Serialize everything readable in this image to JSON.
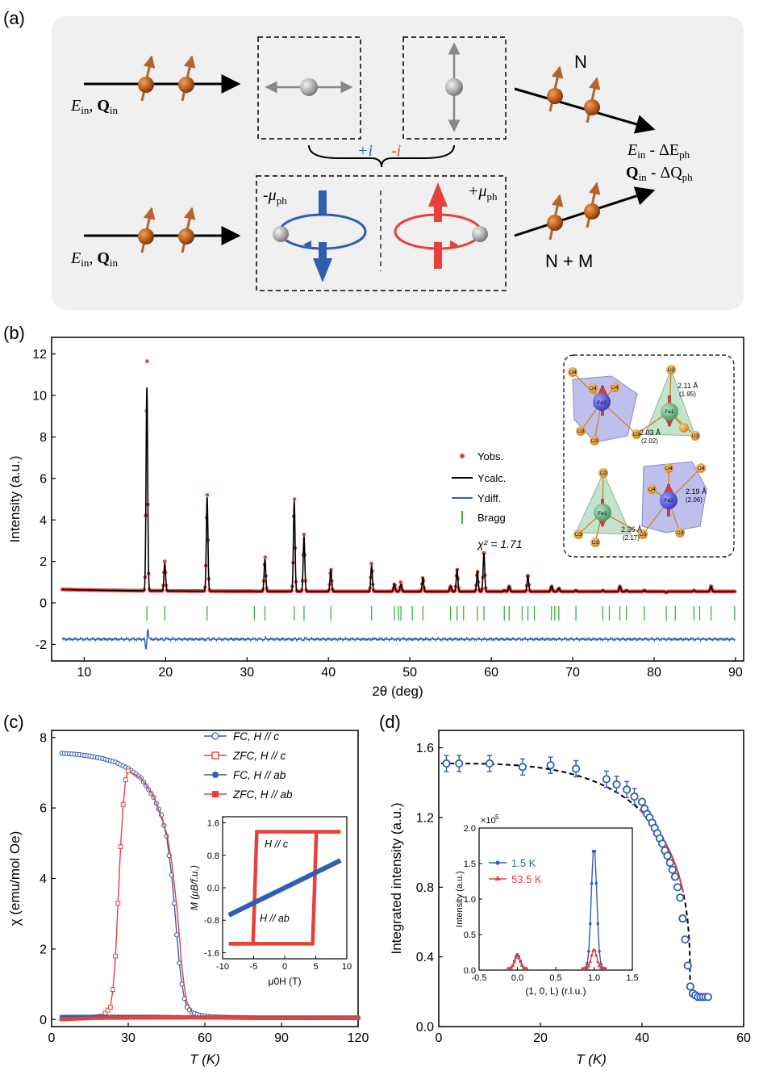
{
  "panel_labels": {
    "a": "(a)",
    "b": "(b)",
    "c": "(c)",
    "d": "(d)"
  },
  "schematic": {
    "top_beam_E": "E",
    "top_beam_E_sub": "in",
    "top_beam_Q": "Q",
    "top_beam_Q_sub": "in",
    "bottom_beam_E": "E",
    "bottom_beam_E_sub": "in",
    "bottom_beam_Q": "Q",
    "bottom_beam_Q_sub": "in",
    "plus_i": "+i",
    "minus_i": "-i",
    "label_N": "N",
    "label_NM": "N + M",
    "out_E": "E",
    "out_E_sub1": "in",
    "out_E_delta": " - ΔE",
    "out_E_sub2": "ph",
    "out_Q": "Q",
    "out_Q_sub1": "in",
    "out_Q_delta": " - ΔQ",
    "out_Q_sub2": "ph",
    "minus_mu": "-μ",
    "minus_mu_sub": "ph",
    "plus_mu": "+μ",
    "plus_mu_sub": "ph",
    "colors": {
      "blue": "#2f5fb0",
      "red": "#e8403a",
      "orange": "#b8622a",
      "gray": "#888888",
      "panel_bg": "#f0f0f0"
    }
  },
  "structure_inset": {
    "labels_top": [
      "O4",
      "O4",
      "O4",
      "Fe2",
      "O3",
      "O3",
      "O2",
      "Fe1",
      "O3",
      "O3"
    ],
    "labels_bottom": [
      "O2",
      "Fe1",
      "O3",
      "O3",
      "O3",
      "O4",
      "Fe2",
      "O4",
      "O4",
      "O3"
    ],
    "bond_top_1": "2.11 Å",
    "bond_top_1b": "(1.95)",
    "bond_top_2": "2.03 Å",
    "bond_top_2b": "(2.02)",
    "bond_bot_1": "2.19 Å",
    "bond_bot_1b": "(2.06)",
    "bond_bot_2": "2.36 Å",
    "bond_bot_2b": "(2.17)"
  },
  "chart_data": [
    {
      "id": "b",
      "type": "scatter",
      "title": "",
      "xlabel": "2θ (deg)",
      "ylabel": "Intensity (a.u.)",
      "xlim": [
        6,
        91
      ],
      "ylim": [
        -2.8,
        12.8
      ],
      "xticks": [
        10,
        20,
        30,
        40,
        50,
        60,
        70,
        80,
        90
      ],
      "yticks": [
        -2,
        0,
        2,
        4,
        6,
        8,
        10,
        12
      ],
      "legend": [
        "Yobs.",
        "Ycalc.",
        "Ydiff.",
        "Bragg"
      ],
      "chi2_label": "χ² = 1.71",
      "background": 0.55,
      "peaks": [
        {
          "x": 17.7,
          "y": 10.4,
          "obs": 11.65
        },
        {
          "x": 19.9,
          "y": 1.9,
          "obs": 2.0
        },
        {
          "x": 25.1,
          "y": 5.1,
          "obs": 5.2
        },
        {
          "x": 32.2,
          "y": 2.1,
          "obs": 2.2
        },
        {
          "x": 35.8,
          "y": 4.9,
          "obs": 5.0
        },
        {
          "x": 37.0,
          "y": 3.2,
          "obs": 3.3
        },
        {
          "x": 40.3,
          "y": 1.6,
          "obs": 1.6
        },
        {
          "x": 45.3,
          "y": 1.8,
          "obs": 1.9
        },
        {
          "x": 48.1,
          "y": 0.9,
          "obs": 0.9
        },
        {
          "x": 48.9,
          "y": 0.9,
          "obs": 1.0
        },
        {
          "x": 51.6,
          "y": 1.2,
          "obs": 1.2
        },
        {
          "x": 55.0,
          "y": 0.8,
          "obs": 0.8
        },
        {
          "x": 55.8,
          "y": 1.6,
          "obs": 1.6
        },
        {
          "x": 58.3,
          "y": 1.5,
          "obs": 1.5
        },
        {
          "x": 59.1,
          "y": 2.4,
          "obs": 2.4
        },
        {
          "x": 61.6,
          "y": 0.6,
          "obs": 0.6
        },
        {
          "x": 62.2,
          "y": 0.8,
          "obs": 0.8
        },
        {
          "x": 64.5,
          "y": 1.3,
          "obs": 1.3
        },
        {
          "x": 67.4,
          "y": 0.8,
          "obs": 0.8
        },
        {
          "x": 68.3,
          "y": 0.7,
          "obs": 0.7
        },
        {
          "x": 70.4,
          "y": 0.6,
          "obs": 0.6
        },
        {
          "x": 73.7,
          "y": 0.6,
          "obs": 0.6
        },
        {
          "x": 75.8,
          "y": 0.8,
          "obs": 0.8
        },
        {
          "x": 76.6,
          "y": 0.6,
          "obs": 0.6
        },
        {
          "x": 78.8,
          "y": 0.6,
          "obs": 0.6
        },
        {
          "x": 81.5,
          "y": 0.5,
          "obs": 0.5
        },
        {
          "x": 84.9,
          "y": 0.6,
          "obs": 0.6
        },
        {
          "x": 87.0,
          "y": 0.8,
          "obs": 0.8
        }
      ],
      "bragg_y": -0.5,
      "bragg_positions": [
        17.7,
        19.9,
        25.1,
        30.9,
        32.2,
        35.8,
        37.0,
        40.3,
        45.3,
        48.1,
        48.6,
        48.9,
        50.3,
        51.6,
        55.0,
        55.8,
        56.6,
        58.3,
        59.1,
        61.6,
        62.2,
        63.8,
        64.5,
        65.3,
        67.4,
        67.8,
        68.3,
        70.4,
        73.7,
        74.5,
        75.8,
        76.6,
        78.8,
        81.5,
        82.6,
        84.9,
        85.6,
        87.0,
        89.9
      ],
      "diff_offset": -1.75
    },
    {
      "id": "c",
      "type": "line",
      "xlabel": "T (K)",
      "ylabel": "χ (emu/mol Oe)",
      "xlim": [
        0,
        120
      ],
      "ylim": [
        -0.2,
        8.2
      ],
      "xticks": [
        0,
        30,
        60,
        90,
        120
      ],
      "yticks": [
        0,
        2,
        4,
        6,
        8
      ],
      "legend": [
        "FC, H // c",
        "ZFC, H // c",
        "FC, H // ab",
        "ZFC, H // ab"
      ],
      "series": [
        {
          "name": "FC, H // c",
          "x": [
            4,
            10,
            15,
            20,
            25,
            30,
            35,
            40,
            43,
            45,
            47,
            48,
            49,
            50,
            51,
            52,
            53,
            55,
            58,
            62,
            70,
            80,
            100,
            120
          ],
          "y": [
            7.55,
            7.52,
            7.47,
            7.4,
            7.3,
            7.12,
            6.85,
            6.3,
            5.8,
            5.2,
            4.1,
            3.3,
            2.4,
            1.6,
            1.0,
            0.6,
            0.35,
            0.2,
            0.12,
            0.08,
            0.06,
            0.05,
            0.05,
            0.05
          ]
        },
        {
          "name": "ZFC, H // c",
          "x": [
            4,
            15,
            20,
            23,
            24,
            25,
            26,
            27,
            28,
            29,
            30,
            35,
            40,
            45,
            47,
            49,
            50,
            51,
            52,
            53,
            55
          ],
          "y": [
            0.02,
            0.05,
            0.1,
            0.35,
            0.85,
            1.8,
            3.3,
            4.9,
            6.1,
            6.8,
            7.05,
            6.85,
            6.32,
            5.3,
            4.5,
            3.2,
            2.4,
            1.5,
            0.9,
            0.5,
            0.2
          ]
        },
        {
          "name": "FC, H // ab",
          "x": [
            4,
            20,
            40,
            50,
            60,
            90,
            120
          ],
          "y": [
            0.08,
            0.08,
            0.08,
            0.07,
            0.06,
            0.05,
            0.04
          ]
        },
        {
          "name": "ZFC, H // ab",
          "x": [
            4,
            20,
            40,
            50,
            60,
            90,
            120
          ],
          "y": [
            0.02,
            0.04,
            0.05,
            0.05,
            0.05,
            0.04,
            0.04
          ]
        }
      ],
      "inset": {
        "type": "line",
        "xlabel": "μ0H (T)",
        "ylabel": "M (μB/f.u.)",
        "xlim": [
          -10,
          10
        ],
        "ylim": [
          -1.75,
          1.75
        ],
        "xticks": [
          -10,
          -5,
          0,
          5,
          10
        ],
        "yticks": [
          1.6,
          0.8,
          0.0,
          -0.8,
          -1.6
        ],
        "label_c": "H // c",
        "label_ab": "H // ab",
        "saturation": 1.38,
        "coercive_field": 4.8,
        "ab_slope": 0.075
      }
    },
    {
      "id": "d",
      "type": "scatter",
      "xlabel": "T (K)",
      "ylabel": "Integrated intensity (a.u.)",
      "xlim": [
        0,
        60
      ],
      "ylim": [
        0.0,
        1.7
      ],
      "xticks": [
        0,
        20,
        40,
        60
      ],
      "yticks": [
        0.0,
        0.4,
        0.8,
        1.2,
        1.6
      ],
      "series": [
        {
          "name": "data",
          "x": [
            1.5,
            4,
            10,
            16.5,
            22,
            27,
            33,
            35,
            37,
            38.5,
            40,
            40.5,
            41,
            41.5,
            42,
            42.5,
            43,
            43.5,
            44,
            44.5,
            45,
            45.5,
            46,
            46.5,
            47,
            47.5,
            48,
            48.5,
            49,
            49.5,
            50,
            50.5,
            51,
            51.5,
            52,
            52.5,
            53
          ],
          "y": [
            1.51,
            1.51,
            1.51,
            1.49,
            1.5,
            1.48,
            1.42,
            1.39,
            1.36,
            1.32,
            1.29,
            1.25,
            1.22,
            1.2,
            1.17,
            1.14,
            1.11,
            1.08,
            1.05,
            1.01,
            0.98,
            0.94,
            0.9,
            0.86,
            0.8,
            0.74,
            0.62,
            0.5,
            0.35,
            0.23,
            0.19,
            0.18,
            0.17,
            0.17,
            0.17,
            0.17,
            0.17
          ]
        },
        {
          "name": "fit",
          "Tc": 49.5,
          "I0": 1.51,
          "bg": 0.17
        }
      ],
      "inset": {
        "type": "line",
        "xlabel": "(1, 0, L) (r.l.u.)",
        "ylabel": "Intensity (a.u.)",
        "xlim": [
          -0.5,
          1.5
        ],
        "ylim": [
          0,
          2.0
        ],
        "xticks": [
          -0.5,
          0.0,
          0.5,
          1.0,
          1.5
        ],
        "yticks": [
          0.0,
          0.5,
          1.0,
          1.5,
          2.0
        ],
        "scale_label": "×10",
        "scale_exp": "5",
        "legend": [
          "1.5 K",
          "53.5 K"
        ],
        "peaks": {
          "1.5 K": [
            {
              "center": 0.0,
              "height": 0.2
            },
            {
              "center": 1.0,
              "height": 1.72
            }
          ],
          "53.5 K": [
            {
              "center": 0.0,
              "height": 0.18
            },
            {
              "center": 1.0,
              "height": 0.27
            }
          ]
        },
        "baseline": 0.02
      }
    }
  ]
}
